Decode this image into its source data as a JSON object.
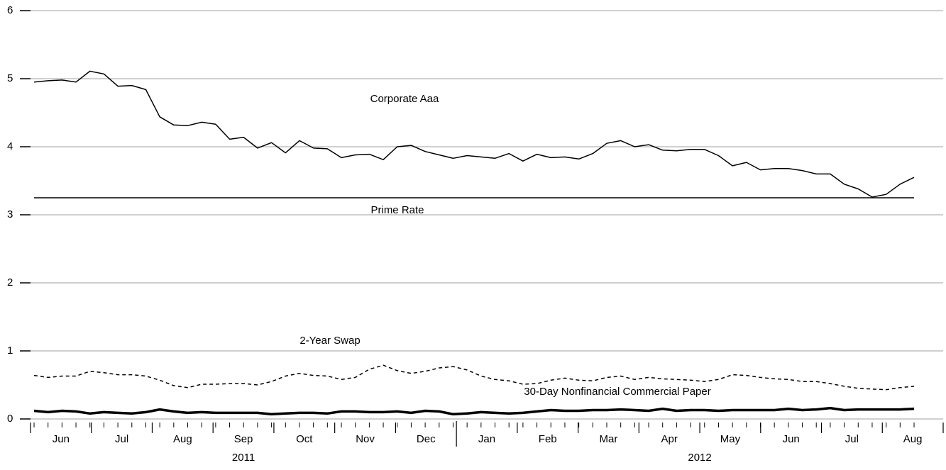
{
  "chart_data": {
    "type": "line",
    "series": [
      {
        "name": "Corporate Aaa",
        "color": "#000000",
        "style": "solid",
        "values": [
          4.95,
          4.97,
          4.98,
          4.95,
          5.11,
          5.07,
          4.89,
          4.9,
          4.84,
          4.44,
          4.32,
          4.31,
          4.36,
          4.33,
          4.11,
          4.14,
          3.98,
          4.06,
          3.91,
          4.09,
          3.98,
          3.97,
          3.84,
          3.88,
          3.89,
          3.81,
          4.0,
          4.02,
          3.93,
          3.88,
          3.83,
          3.87,
          3.85,
          3.83,
          3.9,
          3.79,
          3.89,
          3.84,
          3.85,
          3.82,
          3.9,
          4.05,
          4.09,
          4.0,
          4.03,
          3.95,
          3.94,
          3.96,
          3.96,
          3.87,
          3.72,
          3.77,
          3.66,
          3.68,
          3.68,
          3.65,
          3.6,
          3.6,
          3.45,
          3.38,
          3.26,
          3.3,
          3.45,
          3.55
        ]
      },
      {
        "name": "Prime Rate",
        "color": "#000000",
        "style": "solid",
        "values": [
          3.25,
          3.25,
          3.25,
          3.25,
          3.25,
          3.25,
          3.25,
          3.25,
          3.25,
          3.25,
          3.25,
          3.25,
          3.25,
          3.25,
          3.25,
          3.25,
          3.25,
          3.25,
          3.25,
          3.25,
          3.25,
          3.25,
          3.25,
          3.25,
          3.25,
          3.25,
          3.25,
          3.25,
          3.25,
          3.25,
          3.25,
          3.25,
          3.25,
          3.25,
          3.25,
          3.25,
          3.25,
          3.25,
          3.25,
          3.25,
          3.25,
          3.25,
          3.25,
          3.25,
          3.25,
          3.25,
          3.25,
          3.25,
          3.25,
          3.25,
          3.25,
          3.25,
          3.25,
          3.25,
          3.25,
          3.25,
          3.25,
          3.25,
          3.25,
          3.25,
          3.25,
          3.25,
          3.25,
          3.25
        ]
      },
      {
        "name": "2-Year Swap",
        "color": "#000000",
        "style": "dashed",
        "values": [
          0.64,
          0.61,
          0.63,
          0.63,
          0.7,
          0.68,
          0.65,
          0.65,
          0.63,
          0.57,
          0.49,
          0.46,
          0.51,
          0.51,
          0.52,
          0.52,
          0.5,
          0.55,
          0.63,
          0.67,
          0.64,
          0.63,
          0.58,
          0.61,
          0.73,
          0.79,
          0.71,
          0.67,
          0.7,
          0.75,
          0.77,
          0.72,
          0.63,
          0.58,
          0.56,
          0.51,
          0.52,
          0.57,
          0.6,
          0.57,
          0.56,
          0.61,
          0.63,
          0.58,
          0.61,
          0.59,
          0.58,
          0.57,
          0.55,
          0.58,
          0.65,
          0.64,
          0.61,
          0.59,
          0.58,
          0.55,
          0.55,
          0.52,
          0.48,
          0.45,
          0.44,
          0.43,
          0.46,
          0.48
        ]
      },
      {
        "name": "30-Day Nonfinancial Commercial Paper",
        "color": "#000000",
        "style": "bold",
        "values": [
          0.12,
          0.1,
          0.12,
          0.11,
          0.08,
          0.1,
          0.09,
          0.08,
          0.1,
          0.14,
          0.11,
          0.09,
          0.1,
          0.09,
          0.09,
          0.09,
          0.09,
          0.07,
          0.08,
          0.09,
          0.09,
          0.08,
          0.11,
          0.11,
          0.1,
          0.1,
          0.11,
          0.09,
          0.12,
          0.11,
          0.07,
          0.08,
          0.1,
          0.09,
          0.08,
          0.09,
          0.11,
          0.13,
          0.12,
          0.12,
          0.13,
          0.13,
          0.14,
          0.13,
          0.12,
          0.15,
          0.12,
          0.13,
          0.13,
          0.12,
          0.13,
          0.13,
          0.13,
          0.13,
          0.15,
          0.13,
          0.14,
          0.16,
          0.13,
          0.14,
          0.14,
          0.14,
          0.14,
          0.15
        ]
      }
    ],
    "years": [
      {
        "label": "2011",
        "months": [
          "Jun",
          "Jul",
          "Aug",
          "Sep",
          "Oct",
          "Nov",
          "Dec"
        ]
      },
      {
        "label": "2012",
        "months": [
          "Jan",
          "Feb",
          "Mar",
          "Apr",
          "May",
          "Jun",
          "Jul",
          "Aug"
        ]
      }
    ],
    "ylim": [
      0,
      6
    ],
    "yticks": [
      0,
      1,
      2,
      3,
      4,
      5,
      6
    ],
    "grid": true
  }
}
